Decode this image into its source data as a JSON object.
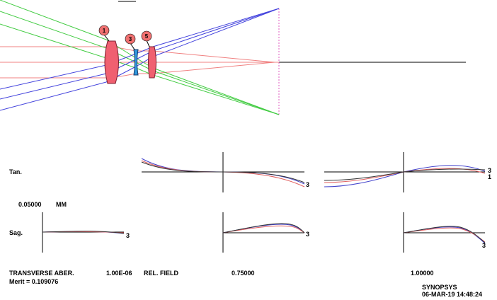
{
  "lens_drawing": {
    "element_numbers": [
      "1",
      "3",
      "5"
    ],
    "ray_colors": {
      "axial": "#f08080",
      "mid_field": "#44cc44",
      "full_field": "#4444dd"
    },
    "lens_fill": "#f06070",
    "element3_fill": "#3399dd",
    "callout_fill": "#f07070"
  },
  "fan_plots": {
    "tan_label": "Tan.",
    "sag_label": "Sag.",
    "scale_value": "0.05000",
    "scale_unit": "MM",
    "curve_label": "3",
    "curve_label_1": "1",
    "curve_colors": {
      "wavelength_1": "#4444cc",
      "wavelength_2": "#e06060",
      "wavelength_3": "#333333"
    }
  },
  "footer": {
    "title": "TRANSVERSE ABER.",
    "small_value": "1.00E-06",
    "rel_field_label": "REL. FIELD",
    "field_mid": "0.75000",
    "field_full": "1.00000",
    "merit": "Merit = 0.109076",
    "program": "SYNOPSYS",
    "date": "06-MAR-19  14:48:24"
  }
}
